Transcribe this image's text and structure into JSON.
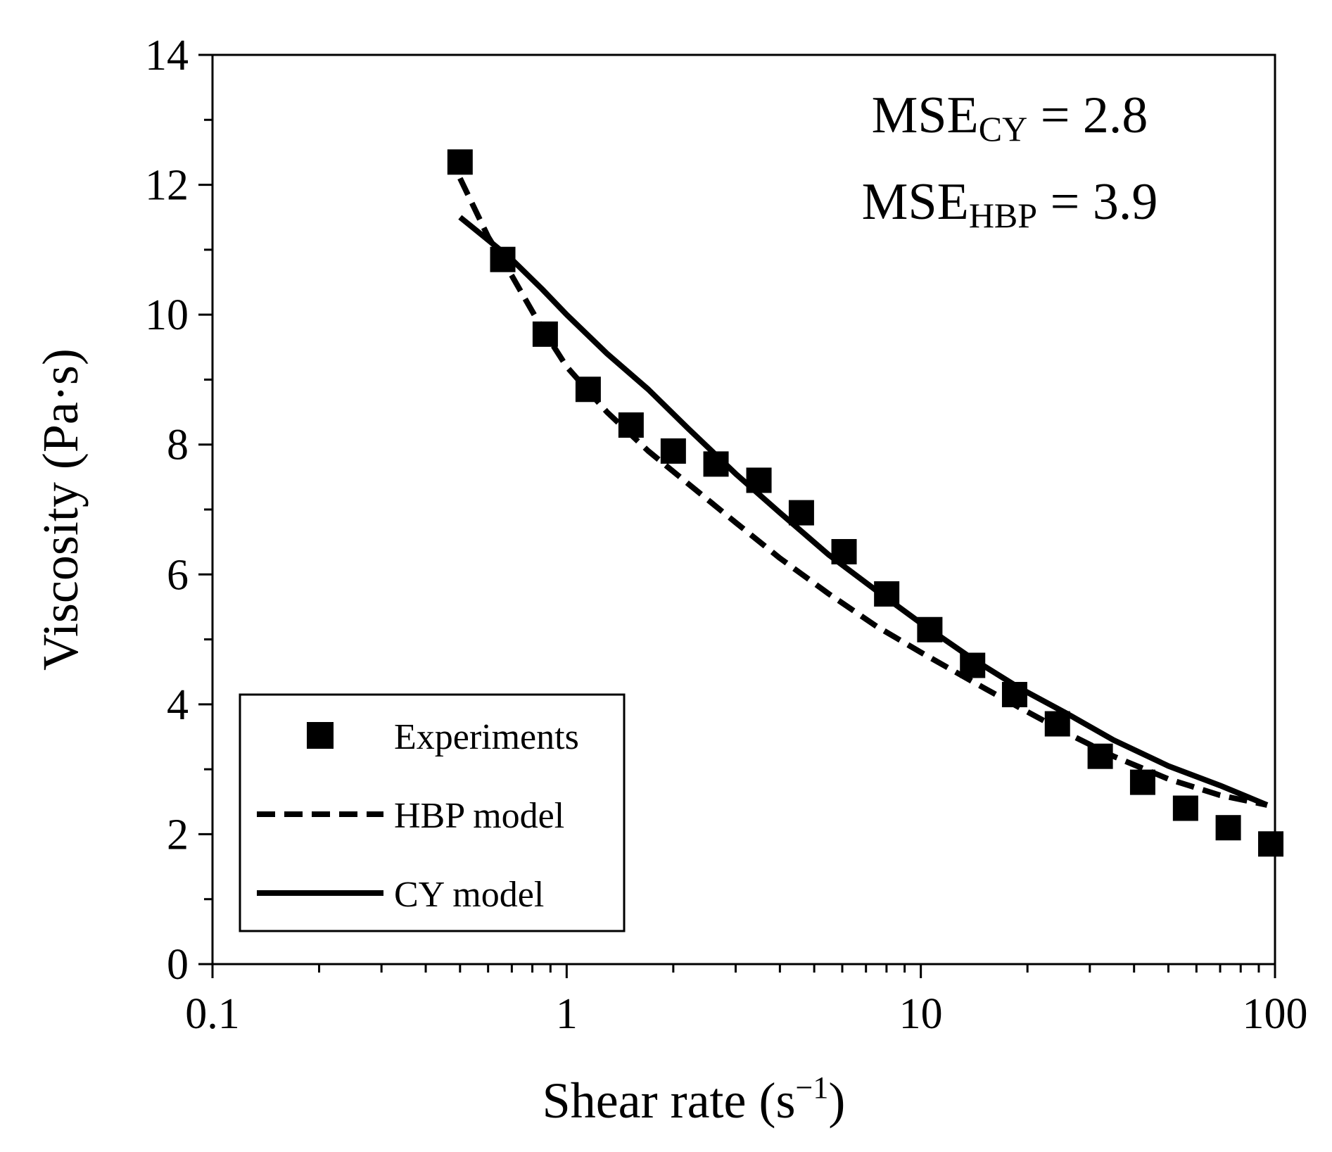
{
  "chart_data": {
    "type": "scatter",
    "xscale": "log",
    "xlim": [
      0.1,
      100
    ],
    "ylim": [
      0,
      14
    ],
    "xticks": [
      0.1,
      1,
      10,
      100
    ],
    "xtick_labels": [
      "0.1",
      "1",
      "10",
      "100"
    ],
    "yticks": [
      0,
      2,
      4,
      6,
      8,
      10,
      12,
      14
    ],
    "ytick_labels": [
      "0",
      "2",
      "4",
      "6",
      "8",
      "10",
      "12",
      "14"
    ],
    "xlabel": "Shear rate (s",
    "xlabel_sup": "−1",
    "xlabel_end": ")",
    "ylabel": "Viscosity (Pa·s)",
    "grid": false,
    "legend_position": "bottom-left",
    "annotations": [
      {
        "main": "MSE",
        "sub": "CY",
        "value": " = 2.8"
      },
      {
        "main": "MSE",
        "sub": "HBP",
        "value": " = 3.9"
      }
    ],
    "series": [
      {
        "name": "Experiments",
        "kind": "markers",
        "marker": "square",
        "color": "#000000",
        "x": [
          0.5,
          0.66,
          0.87,
          1.15,
          1.52,
          2.0,
          2.64,
          3.49,
          4.6,
          6.07,
          8.01,
          10.6,
          14.0,
          18.4,
          24.3,
          32.1,
          42.3,
          55.9,
          73.8,
          97.3
        ],
        "y": [
          12.35,
          10.85,
          9.7,
          8.85,
          8.3,
          7.9,
          7.7,
          7.45,
          6.95,
          6.35,
          5.7,
          5.15,
          4.6,
          4.15,
          3.7,
          3.2,
          2.8,
          2.4,
          2.1,
          1.85
        ]
      },
      {
        "name": "HBP model",
        "kind": "line",
        "dash": "dashed",
        "color": "#000000",
        "x": [
          0.5,
          0.6,
          0.7,
          0.85,
          1.0,
          1.3,
          1.7,
          2.2,
          3.0,
          4.0,
          5.5,
          7.5,
          10.0,
          14.0,
          19.0,
          26.0,
          35.0,
          50.0,
          70.0,
          95.0
        ],
        "y": [
          12.1,
          11.2,
          10.6,
          9.8,
          9.2,
          8.5,
          7.9,
          7.4,
          6.8,
          6.25,
          5.7,
          5.2,
          4.8,
          4.35,
          3.95,
          3.55,
          3.2,
          2.85,
          2.6,
          2.45
        ]
      },
      {
        "name": "CY model",
        "kind": "line",
        "dash": "solid",
        "color": "#000000",
        "x": [
          0.5,
          0.6,
          0.7,
          0.85,
          1.0,
          1.3,
          1.7,
          2.2,
          3.0,
          4.0,
          5.5,
          7.5,
          10.0,
          14.0,
          19.0,
          26.0,
          35.0,
          50.0,
          70.0,
          95.0
        ],
        "y": [
          11.5,
          11.15,
          10.85,
          10.4,
          10.0,
          9.4,
          8.85,
          8.25,
          7.55,
          6.95,
          6.3,
          5.75,
          5.25,
          4.7,
          4.25,
          3.85,
          3.45,
          3.05,
          2.75,
          2.45
        ]
      }
    ]
  }
}
